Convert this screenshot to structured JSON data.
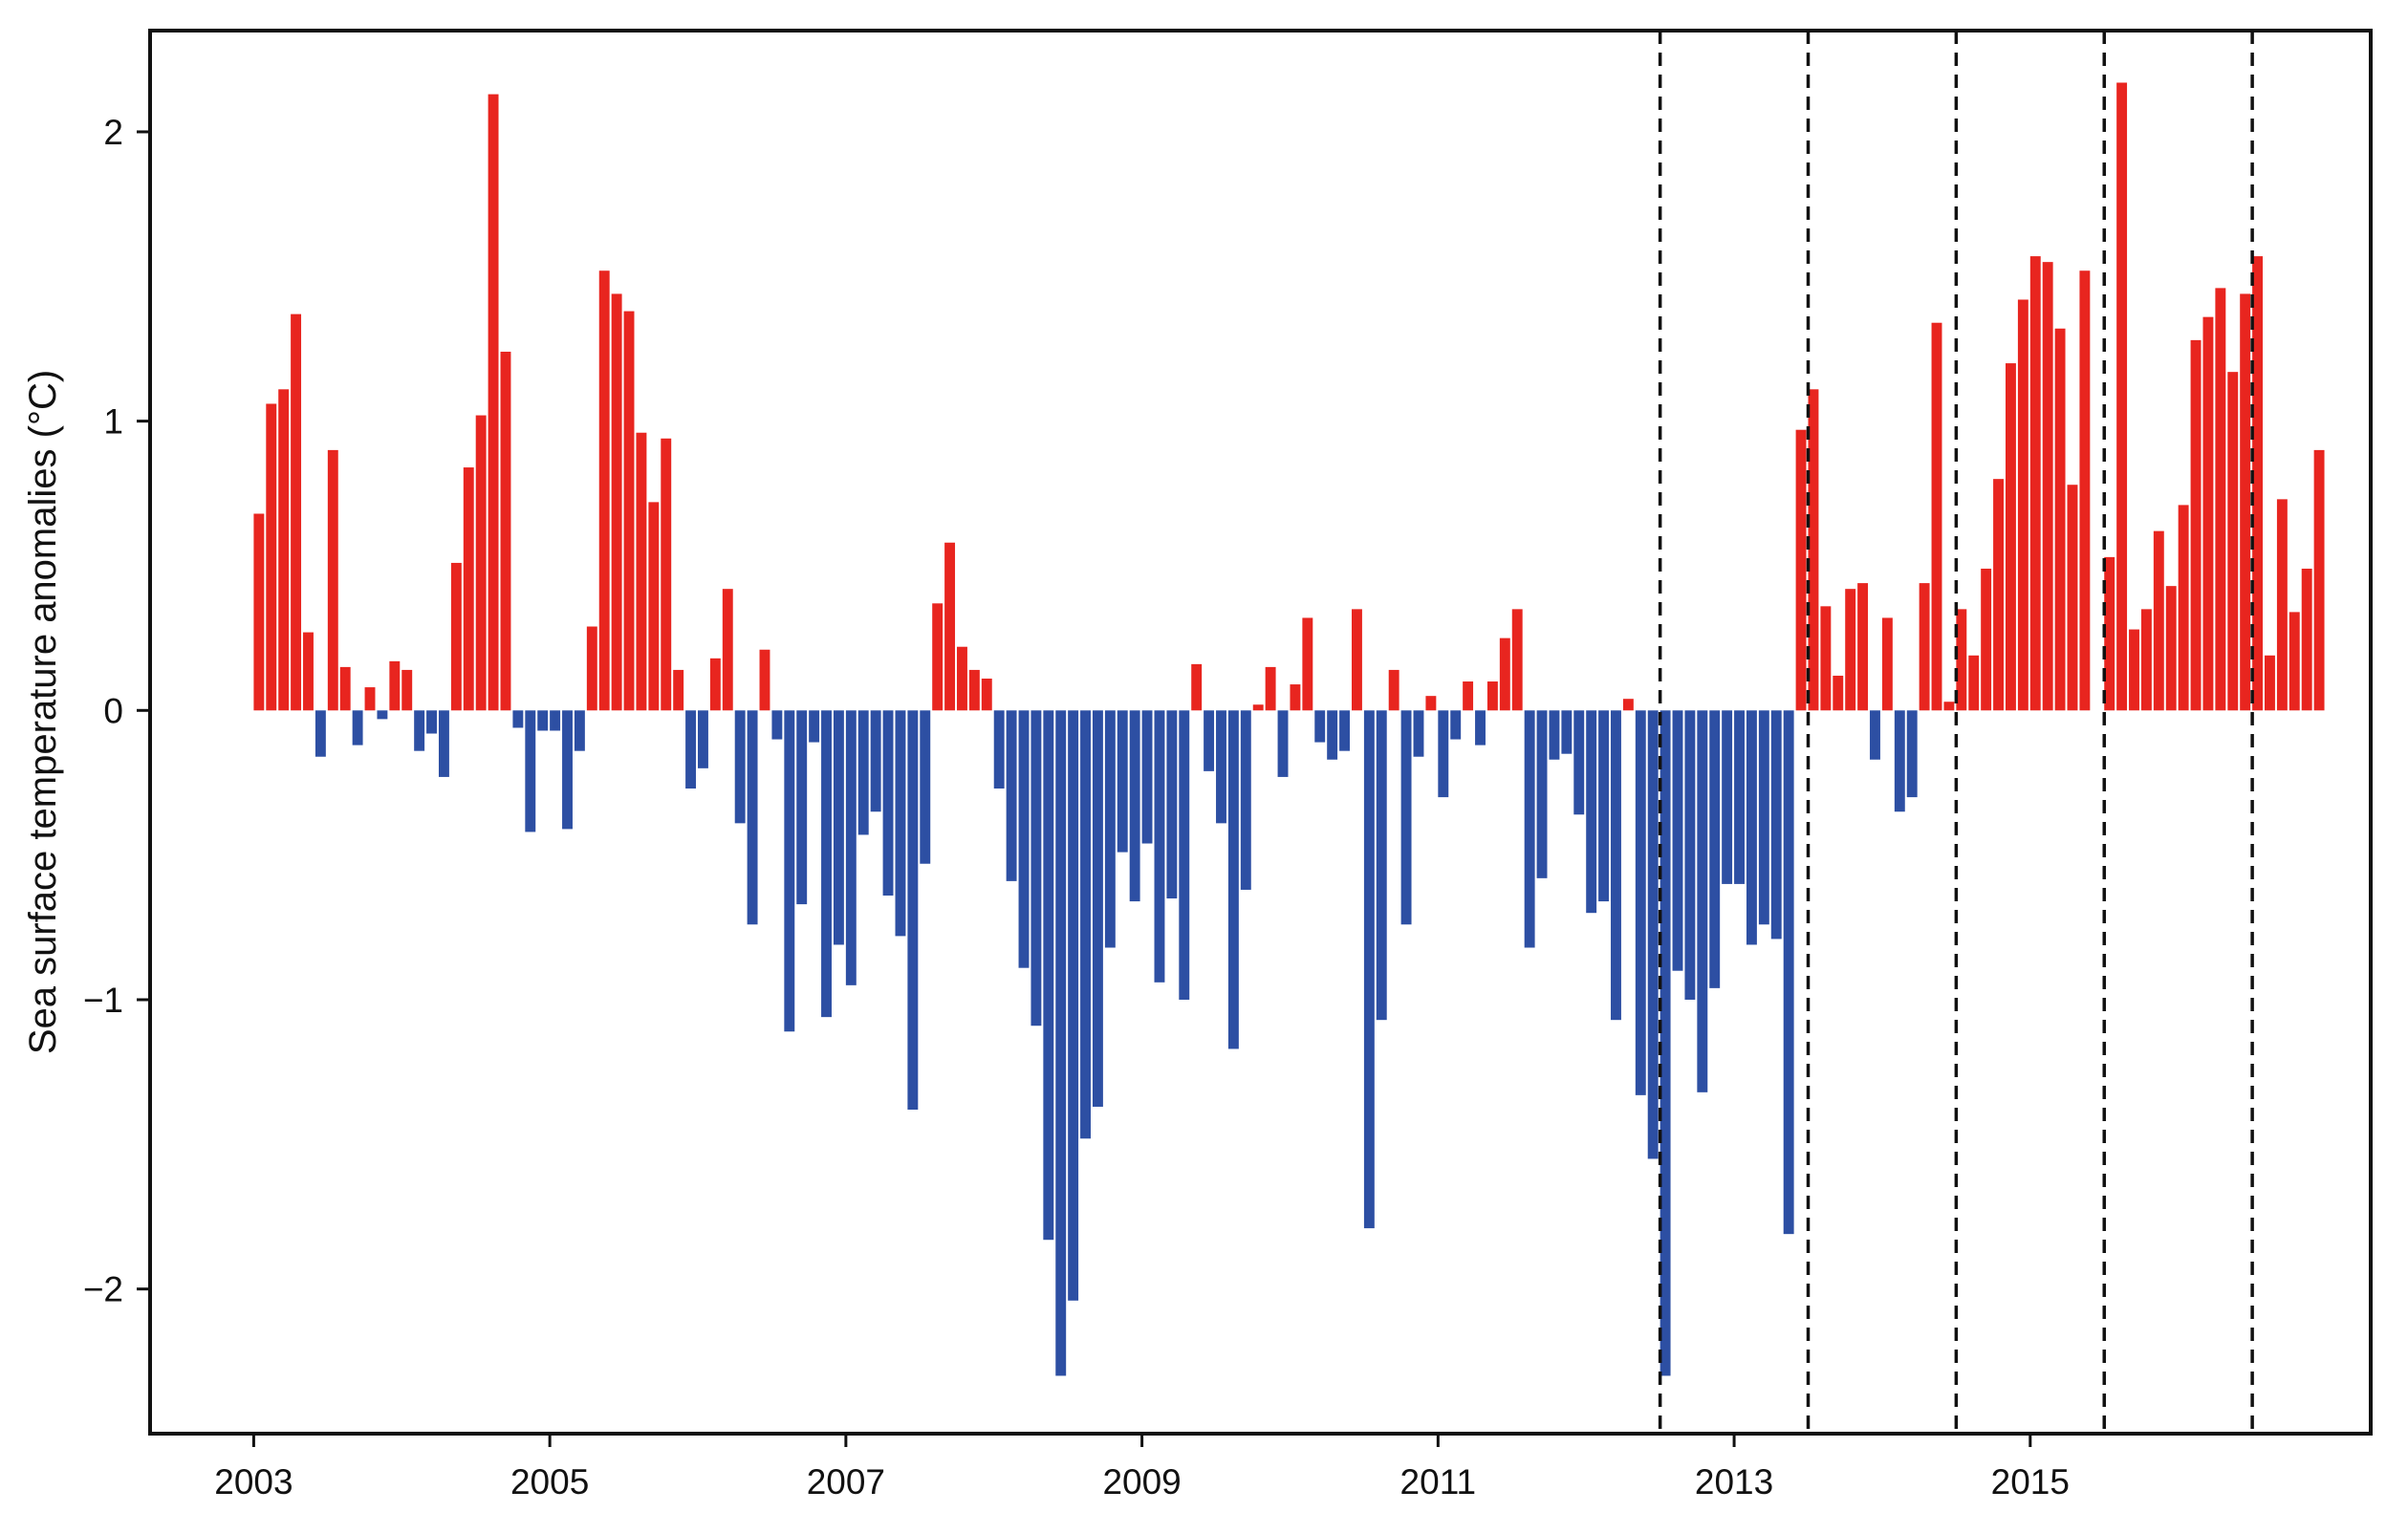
{
  "chart_data": {
    "type": "bar",
    "title": "",
    "xlabel": "",
    "ylabel": "Sea surface temperature anomalies (°C)",
    "x_start": "2003-01",
    "x_end": "2016-12",
    "frequency": "monthly",
    "ylim": [
      -2.5,
      2.35
    ],
    "xlim": [
      2002.3,
      2017.3
    ],
    "yticks": [
      -2,
      -1,
      0,
      1,
      2
    ],
    "ytick_labels": [
      "−2",
      "−1",
      "0",
      "1",
      "2"
    ],
    "xticks": [
      2003,
      2005,
      2007,
      2009,
      2011,
      2013,
      2015
    ],
    "xtick_labels": [
      "2003",
      "2005",
      "2007",
      "2009",
      "2011",
      "2013",
      "2015"
    ],
    "grid": false,
    "legend": "none",
    "positive_color": "#e8251f",
    "negative_color": "#2d4fa3",
    "reference_lines": [
      {
        "x": 2012.5,
        "style": "dashed"
      },
      {
        "x": 2013.5,
        "style": "dashed"
      },
      {
        "x": 2014.5,
        "style": "dashed"
      },
      {
        "x": 2015.5,
        "style": "dashed"
      },
      {
        "x": 2016.5,
        "style": "dashed"
      }
    ],
    "values": [
      0.68,
      1.06,
      1.11,
      1.37,
      0.27,
      -0.16,
      0.9,
      0.15,
      -0.12,
      0.08,
      -0.03,
      0.17,
      0.14,
      -0.14,
      -0.08,
      -0.23,
      0.51,
      0.84,
      1.02,
      2.13,
      1.24,
      -0.06,
      -0.42,
      -0.07,
      -0.07,
      -0.41,
      -0.14,
      0.29,
      1.52,
      1.44,
      1.38,
      0.96,
      0.72,
      0.94,
      0.14,
      -0.27,
      -0.2,
      0.18,
      0.42,
      -0.39,
      -0.74,
      0.21,
      -0.1,
      -1.11,
      -0.67,
      -0.11,
      -1.06,
      -0.81,
      -0.95,
      -0.43,
      -0.35,
      -0.64,
      -0.78,
      -1.38,
      -0.53,
      0.37,
      0.58,
      0.22,
      0.14,
      0.11,
      -0.27,
      -0.59,
      -0.89,
      -1.09,
      -1.83,
      -2.3,
      -2.04,
      -1.48,
      -1.37,
      -0.82,
      -0.49,
      -0.66,
      -0.46,
      -0.94,
      -0.65,
      -1.0,
      0.16,
      -0.21,
      -0.39,
      -1.17,
      -0.62,
      0.02,
      0.15,
      -0.23,
      0.09,
      0.32,
      -0.11,
      -0.17,
      -0.14,
      0.35,
      -1.79,
      -1.07,
      0.14,
      -0.74,
      -0.16,
      0.05,
      -0.3,
      -0.1,
      0.1,
      -0.12,
      0.1,
      0.25,
      0.35,
      -0.82,
      -0.58,
      -0.17,
      -0.15,
      -0.36,
      -0.7,
      -0.66,
      -1.07,
      0.04,
      -1.33,
      -1.55,
      -2.3,
      -0.9,
      -1.0,
      -1.32,
      -0.96,
      -0.6,
      -0.6,
      -0.81,
      -0.74,
      -0.79,
      -1.81,
      0.97,
      1.11,
      0.36,
      0.12,
      0.42,
      0.44,
      -0.17,
      0.32,
      -0.35,
      -0.3,
      0.44,
      1.34,
      0.03,
      0.35,
      0.19,
      0.49,
      0.8,
      1.2,
      1.42,
      1.57,
      1.55,
      1.32,
      0.78,
      1.52,
      0.0,
      0.53,
      2.17,
      0.28,
      0.35,
      0.62,
      0.43,
      0.71,
      1.28,
      1.36,
      1.46,
      1.17,
      1.44,
      1.57,
      0.19,
      0.73,
      0.34,
      0.49,
      0.9
    ]
  }
}
